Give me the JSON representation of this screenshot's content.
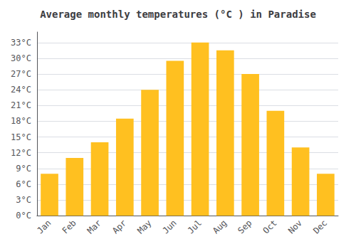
{
  "chart_data": {
    "type": "bar",
    "title": "Average monthly temperatures (°C ) in Paradise",
    "categories": [
      "Jan",
      "Feb",
      "Mar",
      "Apr",
      "May",
      "Jun",
      "Jul",
      "Aug",
      "Sep",
      "Oct",
      "Nov",
      "Dec"
    ],
    "values": [
      8,
      11,
      14,
      18.5,
      24,
      29.5,
      33,
      31.5,
      27,
      20,
      13,
      8
    ],
    "color": "#FFC020",
    "ylim": [
      0,
      35
    ],
    "yticks": [
      {
        "value": 0,
        "label": "0°C"
      },
      {
        "value": 3,
        "label": "3°C"
      },
      {
        "value": 6,
        "label": "6°C"
      },
      {
        "value": 9,
        "label": "9°C"
      },
      {
        "value": 12,
        "label": "12°C"
      },
      {
        "value": 15,
        "label": "15°C"
      },
      {
        "value": 18,
        "label": "18°C"
      },
      {
        "value": 21,
        "label": "21°C"
      },
      {
        "value": 24,
        "label": "24°C"
      },
      {
        "value": 27,
        "label": "27°C"
      },
      {
        "value": 30,
        "label": "30°C"
      },
      {
        "value": 33,
        "label": "33°C"
      }
    ],
    "grid": true
  }
}
